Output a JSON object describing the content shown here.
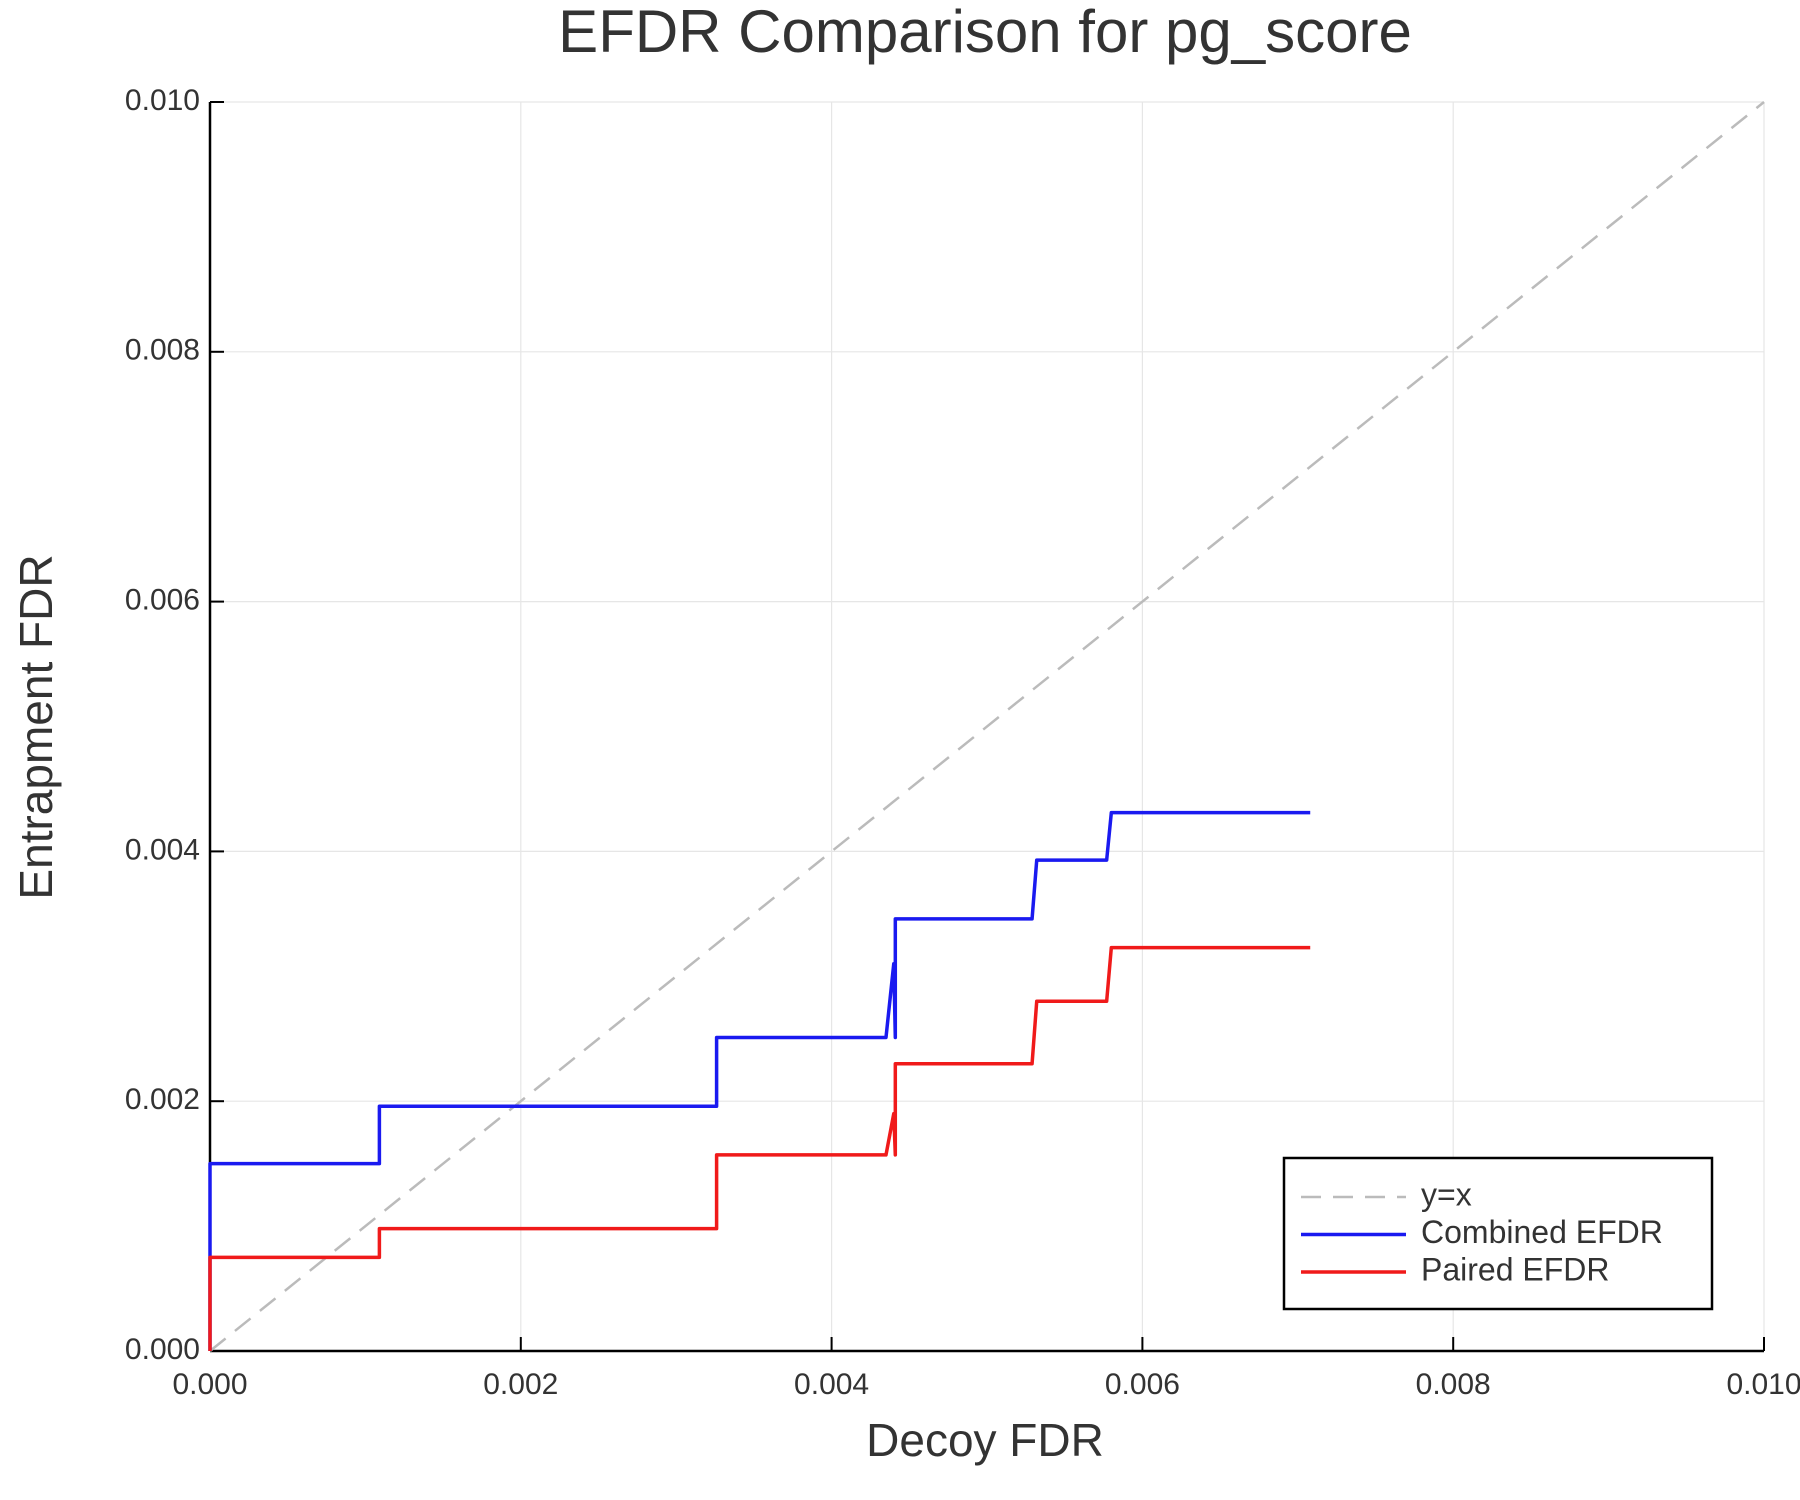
{
  "chart_data": {
    "type": "line",
    "title": "EFDR Comparison for pg_score",
    "x_label": "Decoy FDR",
    "y_label": "Entrapment FDR",
    "xlim": [
      0,
      0.01
    ],
    "ylim": [
      0,
      0.01
    ],
    "xticks": [
      {
        "value": 0,
        "label": "0.000"
      },
      {
        "value": 0.002,
        "label": "0.002"
      },
      {
        "value": 0.004,
        "label": "0.004"
      },
      {
        "value": 0.006,
        "label": "0.006"
      },
      {
        "value": 0.008,
        "label": "0.008"
      },
      {
        "value": 0.01,
        "label": "0.010"
      }
    ],
    "yticks": [
      {
        "value": 0,
        "label": "0.000"
      },
      {
        "value": 0.002,
        "label": "0.002"
      },
      {
        "value": 0.004,
        "label": "0.004"
      },
      {
        "value": 0.006,
        "label": "0.006"
      },
      {
        "value": 0.008,
        "label": "0.008"
      },
      {
        "value": 0.01,
        "label": "0.010"
      }
    ],
    "grid": true,
    "legend_position": "bottom-right",
    "series": [
      {
        "name": "y=x",
        "color": "#bbbbbb",
        "style": "dashed",
        "x": [
          0,
          0.01
        ],
        "values": [
          0,
          0.01
        ]
      },
      {
        "name": "Combined EFDR",
        "color": "#1a1af0",
        "style": "solid",
        "x": [
          0,
          0,
          0.00109,
          0.00109,
          0.00326,
          0.00326,
          0.00435,
          0.0044,
          0.00441,
          0.00441,
          0.00529,
          0.00532,
          0.00577,
          0.0058,
          0.00708
        ],
        "values": [
          0,
          0.0015,
          0.0015,
          0.00196,
          0.00196,
          0.00251,
          0.00251,
          0.0031,
          0.00251,
          0.00346,
          0.00346,
          0.00393,
          0.00393,
          0.00431,
          0.00431
        ]
      },
      {
        "name": "Paired EFDR",
        "color": "#f01a1a",
        "style": "solid",
        "x": [
          0,
          0,
          0.00109,
          0.00109,
          0.00326,
          0.00326,
          0.00435,
          0.0044,
          0.00441,
          0.00441,
          0.00529,
          0.00532,
          0.00577,
          0.0058,
          0.00708
        ],
        "values": [
          0,
          0.00075,
          0.00075,
          0.00098,
          0.00098,
          0.00157,
          0.00157,
          0.0019,
          0.00157,
          0.0023,
          0.0023,
          0.0028,
          0.0028,
          0.00323,
          0.00323
        ]
      }
    ]
  }
}
